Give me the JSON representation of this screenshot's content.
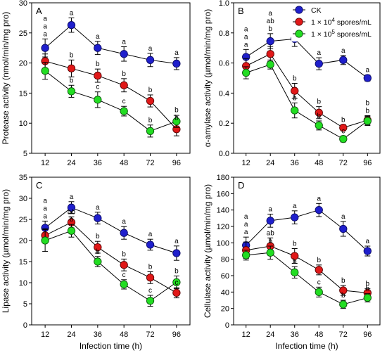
{
  "legend": {
    "entries": [
      {
        "label": "CK",
        "color": "#1f1fcc"
      },
      {
        "label": "1 × 10",
        "sup": "4",
        "suffix": " spores/mL",
        "color": "#e01818"
      },
      {
        "label": "1 × 10",
        "sup": "5",
        "suffix": " spores/mL",
        "color": "#22dd22"
      }
    ]
  },
  "chart_data": [
    {
      "type": "line",
      "panel": "A",
      "categories": [
        "12",
        "24",
        "36",
        "48",
        "72",
        "96"
      ],
      "xlabel": "",
      "ylabel": "Protease activity (nmol/min/mg pro)",
      "ylim": [
        5,
        30
      ],
      "yticks": [
        "5",
        "10",
        "15",
        "20",
        "25",
        "30"
      ],
      "series": [
        {
          "name": "CK",
          "values": [
            22.5,
            26.3,
            22.5,
            21.5,
            20.5,
            19.9
          ],
          "errors": [
            1.5,
            1.2,
            1.1,
            1.2,
            1.1,
            1.0
          ],
          "labels": [
            "a\na\na",
            "a",
            "a",
            "a",
            "a",
            "a"
          ]
        },
        {
          "name": "1 × 10⁴ spores/mL",
          "values": [
            20.3,
            19.1,
            17.9,
            16.3,
            13.7,
            9.0
          ],
          "errors": [
            1.2,
            1.4,
            1.1,
            1.1,
            1.0,
            1.1
          ],
          "labels": [
            "",
            "b",
            "b",
            "b",
            "b",
            "b\nb"
          ]
        },
        {
          "name": "1 × 10⁵ spores/mL",
          "values": [
            18.7,
            15.3,
            13.9,
            12.0,
            8.7,
            10.3
          ],
          "errors": [
            1.4,
            1.0,
            1.3,
            0.8,
            1.0,
            1.0
          ],
          "labels": [
            "",
            "b",
            "c",
            "c",
            "b",
            ""
          ]
        }
      ]
    },
    {
      "type": "line",
      "panel": "B",
      "categories": [
        "12",
        "24",
        "36",
        "48",
        "72",
        "96"
      ],
      "xlabel": "",
      "ylabel": "α-amylase activity (µmol/min/mg pro)",
      "ylim": [
        0.0,
        1.0
      ],
      "yticks": [
        "0.0",
        "0.2",
        "0.4",
        "0.6",
        "0.8",
        "1.0"
      ],
      "series": [
        {
          "name": "CK",
          "values": [
            0.64,
            0.745,
            0.76,
            0.595,
            0.62,
            0.5
          ],
          "errors": [
            0.05,
            0.05,
            0.05,
            0.04,
            0.03,
            0.02
          ],
          "labels": [
            "a\na\na",
            "a\nab\nb",
            "a",
            "a",
            "a",
            "a"
          ]
        },
        {
          "name": "1 × 10⁴ spores/mL",
          "values": [
            0.58,
            0.66,
            0.415,
            0.27,
            0.17,
            0.22
          ],
          "errors": [
            0.05,
            0.05,
            0.05,
            0.04,
            0.02,
            0.03
          ],
          "labels": [
            "",
            "",
            "b",
            "b",
            "b",
            "b\nb"
          ]
        },
        {
          "name": "1 × 10⁵ spores/mL",
          "values": [
            0.535,
            0.59,
            0.285,
            0.185,
            0.095,
            0.215
          ],
          "errors": [
            0.04,
            0.03,
            0.05,
            0.03,
            0.02,
            0.03
          ],
          "labels": [
            "",
            "",
            "b",
            "b",
            "c",
            ""
          ]
        }
      ]
    },
    {
      "type": "line",
      "panel": "C",
      "categories": [
        "12",
        "24",
        "36",
        "48",
        "72",
        "96"
      ],
      "xlabel": "Infection time (h)",
      "ylabel": "Lipase activity (µmol/min/mg pro)",
      "ylim": [
        0,
        35
      ],
      "yticks": [
        "0",
        "5",
        "10",
        "15",
        "20",
        "25",
        "30",
        "35"
      ],
      "series": [
        {
          "name": "CK",
          "values": [
            23.0,
            27.8,
            25.3,
            21.8,
            19.0,
            17.0
          ],
          "errors": [
            1.6,
            1.4,
            1.4,
            1.5,
            1.3,
            1.7
          ],
          "labels": [
            "a\na\na",
            "a",
            "a",
            "a",
            "a",
            "a"
          ]
        },
        {
          "name": "1 × 10⁴ spores/mL",
          "values": [
            21.2,
            24.3,
            18.4,
            14.2,
            11.2,
            7.6
          ],
          "errors": [
            1.6,
            1.3,
            1.4,
            1.4,
            1.4,
            1.2
          ],
          "labels": [
            "",
            "ab",
            "b",
            "b",
            "b",
            "c"
          ]
        },
        {
          "name": "1 × 10⁵ spores/mL",
          "values": [
            20.0,
            22.3,
            15.0,
            9.6,
            5.7,
            10.1
          ],
          "errors": [
            2.6,
            1.5,
            1.2,
            1.1,
            1.3,
            1.5
          ],
          "labels": [
            "",
            "b",
            "b",
            "c",
            "c",
            "b"
          ]
        }
      ]
    },
    {
      "type": "line",
      "panel": "D",
      "categories": [
        "12",
        "24",
        "36",
        "48",
        "72",
        "96"
      ],
      "xlabel": "Infection time (h)",
      "ylabel": "Cellulase activity (µmol/min/mg pro)",
      "ylim": [
        0,
        180
      ],
      "yticks": [
        "0",
        "20",
        "40",
        "60",
        "80",
        "100",
        "120",
        "140",
        "160",
        "180"
      ],
      "series": [
        {
          "name": "CK",
          "values": [
            97,
            127,
            131,
            140,
            117,
            90
          ],
          "errors": [
            10,
            8,
            8,
            8,
            9,
            6
          ],
          "labels": [
            "a\na\na",
            "a",
            "a",
            "a",
            "a",
            "a"
          ]
        },
        {
          "name": "1 × 10⁴ spores/mL",
          "values": [
            91,
            96,
            84,
            67,
            42,
            39
          ],
          "errors": [
            10,
            10,
            9,
            6,
            6,
            5
          ],
          "labels": [
            "",
            "ab",
            "b",
            "b",
            "b",
            "b"
          ]
        },
        {
          "name": "1 × 10⁵ spores/mL",
          "values": [
            85,
            88,
            64,
            40,
            25,
            33
          ],
          "errors": [
            6,
            8,
            7,
            6,
            5,
            5
          ],
          "labels": [
            "",
            "b",
            "b",
            "c",
            "b",
            "b"
          ]
        }
      ]
    }
  ]
}
